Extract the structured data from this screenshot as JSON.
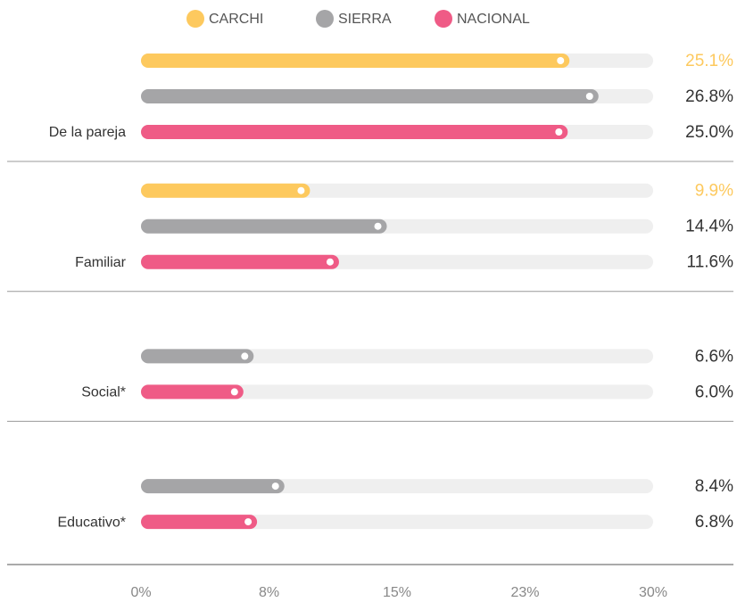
{
  "chart_data": {
    "type": "bar",
    "orientation": "horizontal",
    "categories": [
      "De la pareja",
      "Familiar",
      "Social*",
      "Educativo*"
    ],
    "series": [
      {
        "name": "CARCHI",
        "color": "#fdc95e",
        "values": [
          25.1,
          9.9,
          null,
          null
        ],
        "value_labels": [
          "25.1%",
          "9.9%",
          null,
          null
        ]
      },
      {
        "name": "SIERRA",
        "color": "#a5a5a7",
        "values": [
          26.8,
          14.4,
          6.6,
          8.4
        ],
        "value_labels": [
          "26.8%",
          "14.4%",
          "6.6%",
          "8.4%"
        ]
      },
      {
        "name": "NACIONAL",
        "color": "#ef5b86",
        "values": [
          25.0,
          11.6,
          6.0,
          6.8
        ],
        "value_labels": [
          "25.0%",
          "11.6%",
          "6.0%",
          "6.8%"
        ]
      }
    ],
    "xlim": [
      0,
      30
    ],
    "xticks": [
      {
        "value": 0,
        "label": "0%"
      },
      {
        "value": 7.5,
        "label": "8%"
      },
      {
        "value": 15,
        "label": "15%"
      },
      {
        "value": 22.5,
        "label": "23%"
      },
      {
        "value": 30,
        "label": "30%"
      }
    ],
    "legend": "top"
  }
}
